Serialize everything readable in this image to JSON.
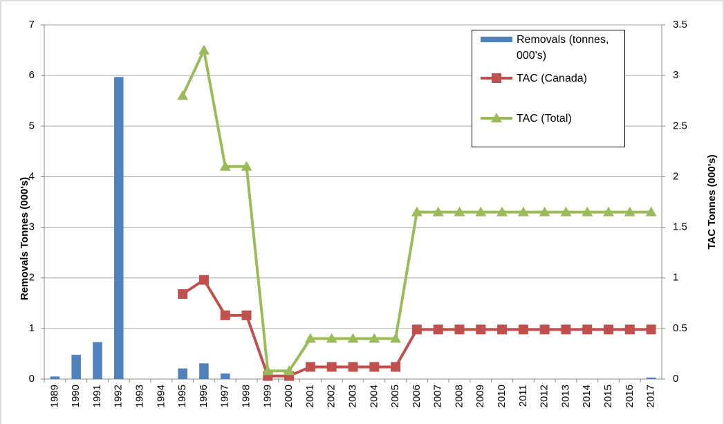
{
  "chart_data": {
    "type": "bar",
    "ylabel": "Removals Tonnes (000's)",
    "y2label": "TAC Tonnes (000's)",
    "categories": [
      "1989",
      "1990",
      "1991",
      "1992",
      "1993",
      "1994",
      "1995",
      "1996",
      "1997",
      "1998",
      "1999",
      "2000",
      "2001",
      "2002",
      "2003",
      "2004",
      "2005",
      "2006",
      "2007",
      "2008",
      "2009",
      "2010",
      "2011",
      "2012",
      "2013",
      "2014",
      "2015",
      "2016",
      "2017"
    ],
    "series": [
      {
        "name": "Removals (tonnes, 000's)",
        "type": "bar",
        "color": "#4f81bd",
        "values": [
          0.05,
          0.48,
          0.73,
          5.97,
          0,
          0,
          0.21,
          0.31,
          0.11,
          0,
          0,
          0,
          0,
          0,
          0,
          0,
          0,
          0,
          0,
          0,
          0,
          0,
          0,
          0,
          0,
          0,
          0,
          0,
          0.03
        ]
      },
      {
        "name": "TAC (Canada)",
        "type": "line",
        "marker": "square",
        "axis": "y2",
        "color": "#c0504d",
        "values": [
          null,
          null,
          null,
          null,
          null,
          null,
          0.84,
          0.98,
          0.63,
          0.63,
          0.03,
          0.03,
          0.12,
          0.12,
          0.12,
          0.12,
          0.12,
          0.49,
          0.49,
          0.49,
          0.49,
          0.49,
          0.49,
          0.49,
          0.49,
          0.49,
          0.49,
          0.49,
          0.49
        ]
      },
      {
        "name": "TAC (Total)",
        "type": "line",
        "marker": "triangle",
        "axis": "y2",
        "color": "#9bbb59",
        "values": [
          null,
          null,
          null,
          null,
          null,
          null,
          2.8,
          3.25,
          2.1,
          2.1,
          0.08,
          0.08,
          0.4,
          0.4,
          0.4,
          0.4,
          0.4,
          1.65,
          1.65,
          1.65,
          1.65,
          1.65,
          1.65,
          1.65,
          1.65,
          1.65,
          1.65,
          1.65,
          1.65
        ]
      }
    ],
    "ylim": [
      0,
      7
    ],
    "yticks": [
      0,
      1,
      2,
      3,
      4,
      5,
      6,
      7
    ],
    "y2lim": [
      0,
      3.5
    ],
    "y2ticks": [
      0,
      0.5,
      1,
      1.5,
      2,
      2.5,
      3,
      3.5
    ],
    "grid": true
  }
}
